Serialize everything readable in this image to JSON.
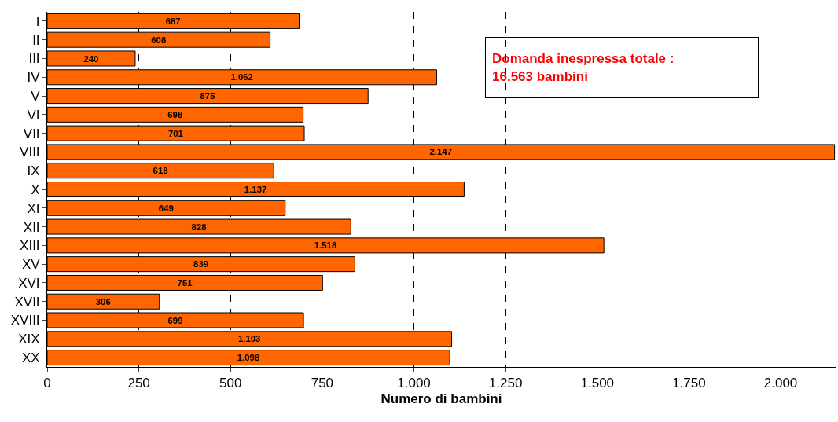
{
  "chart_data": {
    "type": "bar",
    "orientation": "horizontal",
    "xlabel": "Numero di bambini",
    "categories": [
      "I",
      "II",
      "III",
      "IV",
      "V",
      "VI",
      "VII",
      "VIII",
      "IX",
      "X",
      "XI",
      "XII",
      "XIII",
      "XV",
      "XVI",
      "XVII",
      "XVIII",
      "XIX",
      "XX"
    ],
    "values": [
      687,
      608,
      240,
      1062,
      875,
      698,
      701,
      2147,
      618,
      1137,
      649,
      828,
      1518,
      839,
      751,
      306,
      699,
      1103,
      1098
    ],
    "value_labels": [
      "687",
      "608",
      "240",
      "1.062",
      "875",
      "698",
      "701",
      "2.147",
      "618",
      "1.137",
      "649",
      "828",
      "1.518",
      "839",
      "751",
      "306",
      "699",
      "1.103",
      "1.098"
    ],
    "color": "#ff6600",
    "xlim": [
      0,
      2150
    ],
    "xticks": [
      0,
      250,
      500,
      750,
      {
        "value": 1000,
        "label": "1.000"
      },
      {
        "value": 1250,
        "label": "1.250"
      },
      {
        "value": 1500,
        "label": "1.500"
      },
      {
        "value": 1750,
        "label": "1.750"
      },
      {
        "value": 2000,
        "label": "2.000"
      }
    ],
    "grid": "x",
    "annotations": [
      "Domanda inespressa totale :\n16.563 bambini"
    ]
  }
}
